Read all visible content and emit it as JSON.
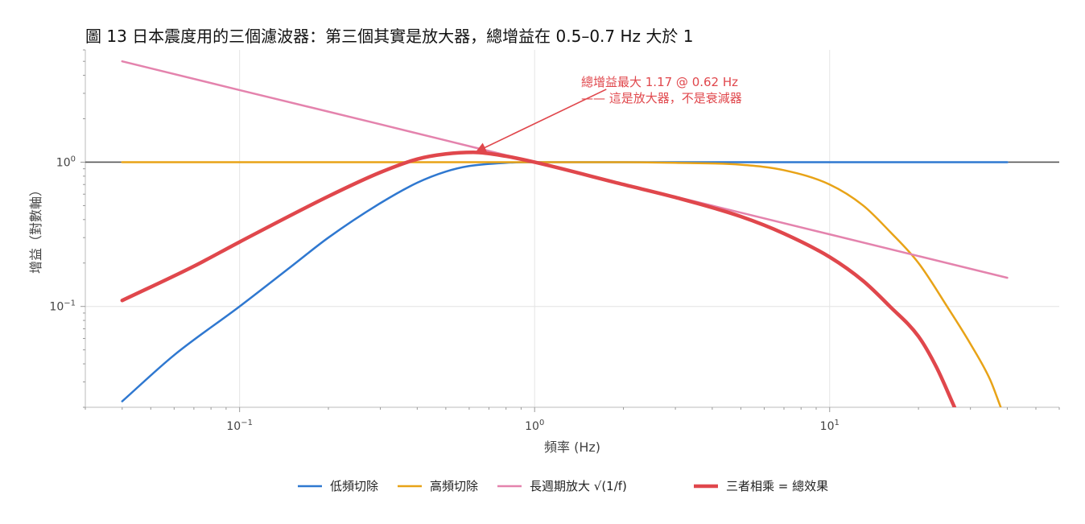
{
  "chart_data": {
    "type": "line",
    "title": "圖 13 日本震度用的三個濾波器：第三個其實是放大器，總增益在 0.5–0.7 Hz 大於 1",
    "xlabel": "頻率 (Hz)",
    "ylabel": "增益（對數軸）",
    "xscale": "log",
    "yscale": "log",
    "xlim": [
      0.03,
      60
    ],
    "ylim": [
      0.02,
      6
    ],
    "grid": true,
    "legend_position": "bottom",
    "x_ticks": [
      {
        "value": 0.1,
        "base": "10",
        "exp": "−1"
      },
      {
        "value": 1,
        "base": "10",
        "exp": "0"
      },
      {
        "value": 10,
        "base": "10",
        "exp": "1"
      }
    ],
    "y_ticks": [
      {
        "value": 0.1,
        "base": "10",
        "exp": "−1"
      },
      {
        "value": 1,
        "base": "10",
        "exp": "0"
      }
    ],
    "reference_line": {
      "y": 1,
      "color": "#555555"
    },
    "series": [
      {
        "name": "低頻切除",
        "color": "#2f78d0",
        "width": 2.5,
        "points": [
          [
            0.04,
            0.022
          ],
          [
            0.06,
            0.046
          ],
          [
            0.1,
            0.1
          ],
          [
            0.15,
            0.19
          ],
          [
            0.2,
            0.3
          ],
          [
            0.3,
            0.52
          ],
          [
            0.4,
            0.72
          ],
          [
            0.5,
            0.86
          ],
          [
            0.6,
            0.94
          ],
          [
            0.8,
            0.99
          ],
          [
            1,
            1
          ],
          [
            2,
            1
          ],
          [
            5,
            1
          ],
          [
            10,
            1
          ],
          [
            20,
            1
          ],
          [
            40,
            1
          ]
        ]
      },
      {
        "name": "高頻切除",
        "color": "#e8a317",
        "width": 2.5,
        "points": [
          [
            0.04,
            1
          ],
          [
            0.1,
            1
          ],
          [
            1,
            1
          ],
          [
            2,
            1
          ],
          [
            3,
            0.99
          ],
          [
            5,
            0.96
          ],
          [
            7,
            0.88
          ],
          [
            10,
            0.7
          ],
          [
            13,
            0.5
          ],
          [
            16,
            0.33
          ],
          [
            20,
            0.2
          ],
          [
            25,
            0.1
          ],
          [
            30,
            0.055
          ],
          [
            35,
            0.031
          ],
          [
            38,
            0.02
          ]
        ]
      },
      {
        "name": "長週期放大 √(1/f)",
        "color": "#e483ad",
        "width": 2.5,
        "points": [
          [
            0.04,
            5.0
          ],
          [
            0.1,
            3.16
          ],
          [
            0.3,
            1.83
          ],
          [
            0.62,
            1.27
          ],
          [
            1,
            1.0
          ],
          [
            3,
            0.577
          ],
          [
            10,
            0.316
          ],
          [
            40,
            0.158
          ]
        ]
      },
      {
        "name": "三者相乘 = 總效果",
        "color": "#e0474c",
        "width": 4.5,
        "points": [
          [
            0.04,
            0.11
          ],
          [
            0.07,
            0.19
          ],
          [
            0.1,
            0.28
          ],
          [
            0.2,
            0.58
          ],
          [
            0.3,
            0.85
          ],
          [
            0.4,
            1.05
          ],
          [
            0.5,
            1.14
          ],
          [
            0.62,
            1.17
          ],
          [
            0.8,
            1.1
          ],
          [
            1,
            1.0
          ],
          [
            2,
            0.7
          ],
          [
            3,
            0.57
          ],
          [
            5,
            0.42
          ],
          [
            7,
            0.32
          ],
          [
            10,
            0.22
          ],
          [
            13,
            0.15
          ],
          [
            16,
            0.1
          ],
          [
            20,
            0.062
          ],
          [
            23,
            0.038
          ],
          [
            26.5,
            0.02
          ]
        ]
      }
    ],
    "annotation": {
      "line1": "總增益最大 1.17 @ 0.62 Hz",
      "line2": "—— 這是放大器，不是衰減器",
      "target": [
        0.62,
        1.17
      ],
      "text_anchor": [
        1.75,
        3.2
      ]
    },
    "legend": [
      {
        "label": "低頻切除",
        "color": "#2f78d0"
      },
      {
        "label": "高頻切除",
        "color": "#e8a317"
      },
      {
        "label": "長週期放大 √(1/f)",
        "color": "#e483ad"
      },
      {
        "label": "三者相乘 = 總效果",
        "color": "#e0474c"
      }
    ]
  }
}
